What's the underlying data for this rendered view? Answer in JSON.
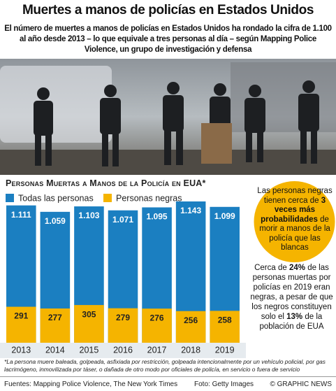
{
  "header": {
    "title": "Muertes a manos de policías en Estados Unidos",
    "subtitle": "El número de muertes a manos de policías en Estados Unidos ha rondado la cifra de 1.100 al año desde 2013 – lo que equivale a tres personas al día – según Mapping Police Violence, un grupo de investigación y defensa"
  },
  "chart_data": {
    "type": "bar",
    "title": "Personas Muertas a Manos de la Policía en EUA*",
    "categories": [
      "2013",
      "2014",
      "2015",
      "2016",
      "2017",
      "2018",
      "2019"
    ],
    "series": [
      {
        "name": "Todas las personas",
        "color": "#1b7fc1",
        "values": [
          1111,
          1059,
          1103,
          1071,
          1095,
          1143,
          1099
        ],
        "value_labels": [
          "1.111",
          "1.059",
          "1.103",
          "1.071",
          "1.095",
          "1.143",
          "1.099"
        ]
      },
      {
        "name": "Personas negras",
        "color": "#f5b400",
        "values": [
          291,
          277,
          305,
          279,
          276,
          256,
          258
        ]
      }
    ]
  },
  "callouts": [
    [
      {
        "text": "Las personas negras tienen cerca de "
      },
      {
        "text": "3 veces más probabilidades",
        "bold": true
      },
      {
        "text": " de morir a manos de la policía que las blancas"
      }
    ],
    [
      {
        "text": "Cerca de "
      },
      {
        "text": "24%",
        "bold": true
      },
      {
        "text": " de las personas muertas por policías en 2019 eran negras, a pesar de que los negros constituyen solo el "
      },
      {
        "text": "13%",
        "bold": true
      },
      {
        "text": " de la población de EUA"
      }
    ]
  ],
  "footnote": "*La persona muere baleada, golpeada, asfixiada por restricción, golpeada intencionalmente por un vehículo policial, por gas lacrimógeno, inmovilizada por táser, o dañada de otro modo por oficiales de policía, en servicio o fuera de servicio",
  "footer": {
    "source": "Fuentes: Mapping Police Violence, The New York Times",
    "photo": "Foto: Getty Images",
    "credit": "© GRAPHIC NEWS"
  }
}
